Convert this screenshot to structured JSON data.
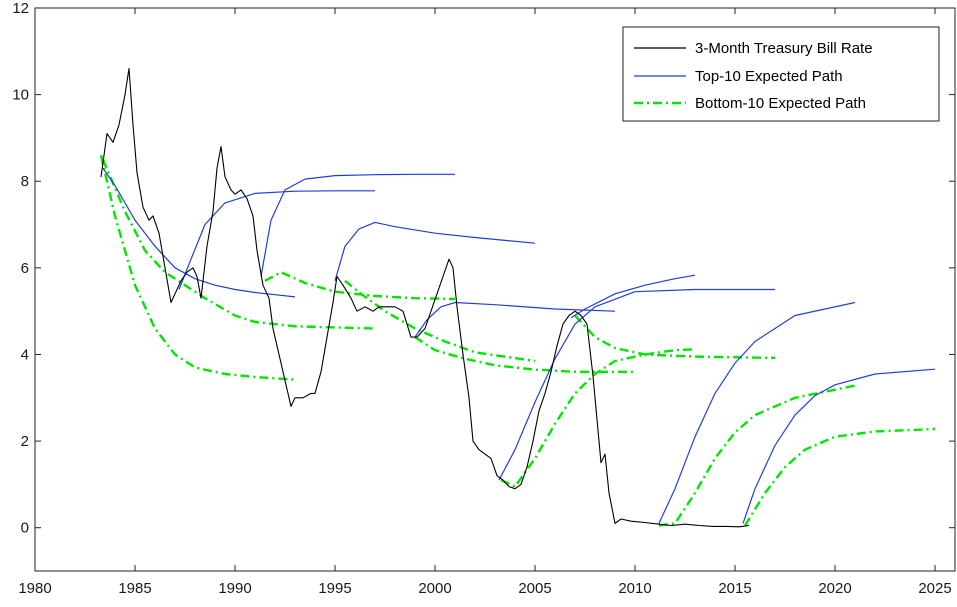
{
  "chart_data": {
    "type": "line",
    "title": "",
    "xlabel": "",
    "ylabel": "",
    "xlim": [
      1980,
      2026
    ],
    "ylim": [
      -1,
      12
    ],
    "xticks": [
      1980,
      1985,
      1990,
      1995,
      2000,
      2005,
      2010,
      2015,
      2020,
      2025
    ],
    "yticks": [
      0,
      2,
      4,
      6,
      8,
      10,
      12
    ],
    "grid": false,
    "legend_position": "top-right",
    "legend": [
      {
        "label": "3-Month Treasury Bill Rate",
        "color": "#000000",
        "style": "solid"
      },
      {
        "label": "Top-10 Expected Path",
        "color": "#1f3fd6",
        "style": "solid"
      },
      {
        "label": "Bottom-10 Expected Path",
        "color": "#00e600",
        "style": "dash-dot"
      }
    ],
    "tbill": {
      "name": "3-Month Treasury Bill Rate",
      "color": "#000000",
      "points": [
        [
          1983.3,
          8.1
        ],
        [
          1983.6,
          9.1
        ],
        [
          1983.9,
          8.9
        ],
        [
          1984.2,
          9.3
        ],
        [
          1984.5,
          10.0
        ],
        [
          1984.7,
          10.6
        ],
        [
          1984.9,
          9.3
        ],
        [
          1985.1,
          8.2
        ],
        [
          1985.4,
          7.4
        ],
        [
          1985.7,
          7.1
        ],
        [
          1985.9,
          7.2
        ],
        [
          1986.2,
          6.8
        ],
        [
          1986.5,
          6.0
        ],
        [
          1986.8,
          5.2
        ],
        [
          1987.0,
          5.4
        ],
        [
          1987.3,
          5.7
        ],
        [
          1987.6,
          5.9
        ],
        [
          1987.9,
          6.0
        ],
        [
          1988.1,
          5.8
        ],
        [
          1988.3,
          5.3
        ],
        [
          1988.6,
          6.5
        ],
        [
          1988.9,
          7.3
        ],
        [
          1989.1,
          8.3
        ],
        [
          1989.3,
          8.8
        ],
        [
          1989.5,
          8.1
        ],
        [
          1989.8,
          7.8
        ],
        [
          1990.0,
          7.7
        ],
        [
          1990.3,
          7.8
        ],
        [
          1990.6,
          7.6
        ],
        [
          1990.9,
          7.2
        ],
        [
          1991.1,
          6.4
        ],
        [
          1991.4,
          5.6
        ],
        [
          1991.7,
          5.3
        ],
        [
          1991.9,
          4.6
        ],
        [
          1992.2,
          4.0
        ],
        [
          1992.4,
          3.6
        ],
        [
          1992.6,
          3.2
        ],
        [
          1992.8,
          2.8
        ],
        [
          1993.0,
          3.0
        ],
        [
          1993.4,
          3.0
        ],
        [
          1993.8,
          3.1
        ],
        [
          1994.0,
          3.1
        ],
        [
          1994.3,
          3.6
        ],
        [
          1994.6,
          4.4
        ],
        [
          1994.9,
          5.2
        ],
        [
          1995.1,
          5.8
        ],
        [
          1995.4,
          5.6
        ],
        [
          1995.8,
          5.3
        ],
        [
          1996.1,
          5.0
        ],
        [
          1996.5,
          5.1
        ],
        [
          1996.9,
          5.0
        ],
        [
          1997.2,
          5.1
        ],
        [
          1997.6,
          5.1
        ],
        [
          1998.0,
          5.1
        ],
        [
          1998.4,
          5.0
        ],
        [
          1998.8,
          4.4
        ],
        [
          1999.1,
          4.4
        ],
        [
          1999.5,
          4.6
        ],
        [
          1999.8,
          5.0
        ],
        [
          2000.1,
          5.4
        ],
        [
          2000.4,
          5.8
        ],
        [
          2000.7,
          6.2
        ],
        [
          2000.9,
          6.0
        ],
        [
          2001.1,
          5.1
        ],
        [
          2001.4,
          4.0
        ],
        [
          2001.7,
          3.0
        ],
        [
          2001.9,
          2.0
        ],
        [
          2002.2,
          1.8
        ],
        [
          2002.5,
          1.7
        ],
        [
          2002.8,
          1.6
        ],
        [
          2003.1,
          1.2
        ],
        [
          2003.4,
          1.1
        ],
        [
          2003.7,
          0.95
        ],
        [
          2004.0,
          0.9
        ],
        [
          2004.3,
          1.0
        ],
        [
          2004.6,
          1.4
        ],
        [
          2004.9,
          2.0
        ],
        [
          2005.2,
          2.7
        ],
        [
          2005.5,
          3.1
        ],
        [
          2005.8,
          3.6
        ],
        [
          2006.1,
          4.2
        ],
        [
          2006.4,
          4.7
        ],
        [
          2006.7,
          4.9
        ],
        [
          2007.0,
          5.0
        ],
        [
          2007.3,
          4.9
        ],
        [
          2007.6,
          4.7
        ],
        [
          2007.9,
          3.5
        ],
        [
          2008.1,
          2.5
        ],
        [
          2008.3,
          1.5
        ],
        [
          2008.5,
          1.7
        ],
        [
          2008.7,
          0.8
        ],
        [
          2009.0,
          0.1
        ],
        [
          2009.3,
          0.2
        ],
        [
          2009.8,
          0.15
        ],
        [
          2010.5,
          0.12
        ],
        [
          2011.2,
          0.08
        ],
        [
          2011.8,
          0.05
        ],
        [
          2012.5,
          0.08
        ],
        [
          2013.2,
          0.05
        ],
        [
          2013.9,
          0.03
        ],
        [
          2014.6,
          0.03
        ],
        [
          2015.2,
          0.02
        ],
        [
          2015.7,
          0.05
        ]
      ]
    },
    "top10": {
      "name": "Top-10 Expected Path",
      "color": "#1f3fd6",
      "paths": [
        [
          [
            1983.4,
            8.3
          ],
          [
            1984.0,
            7.9
          ],
          [
            1985.0,
            7.1
          ],
          [
            1986.0,
            6.5
          ],
          [
            1987.0,
            6.0
          ],
          [
            1988.0,
            5.75
          ],
          [
            1989.0,
            5.6
          ],
          [
            1990.0,
            5.5
          ],
          [
            1991.0,
            5.43
          ],
          [
            1992.0,
            5.38
          ],
          [
            1993.0,
            5.33
          ]
        ],
        [
          [
            1987.2,
            5.5
          ],
          [
            1987.8,
            6.2
          ],
          [
            1988.5,
            7.0
          ],
          [
            1989.5,
            7.5
          ],
          [
            1991.0,
            7.72
          ],
          [
            1993.0,
            7.77
          ],
          [
            1995.0,
            7.78
          ],
          [
            1997.0,
            7.78
          ]
        ],
        [
          [
            1991.3,
            5.8
          ],
          [
            1991.8,
            7.1
          ],
          [
            1992.5,
            7.8
          ],
          [
            1993.5,
            8.05
          ],
          [
            1995.0,
            8.13
          ],
          [
            1997.0,
            8.15
          ],
          [
            1999.0,
            8.16
          ],
          [
            2001.0,
            8.16
          ]
        ],
        [
          [
            1995.0,
            5.7
          ],
          [
            1995.5,
            6.5
          ],
          [
            1996.2,
            6.9
          ],
          [
            1997.0,
            7.05
          ],
          [
            1998.0,
            6.95
          ],
          [
            2000.0,
            6.8
          ],
          [
            2002.0,
            6.7
          ],
          [
            2005.0,
            6.57
          ]
        ],
        [
          [
            1999.0,
            4.4
          ],
          [
            1999.6,
            4.8
          ],
          [
            2000.3,
            5.1
          ],
          [
            2001.0,
            5.2
          ],
          [
            2003.0,
            5.15
          ],
          [
            2006.0,
            5.05
          ],
          [
            2009.0,
            5.0
          ]
        ],
        [
          [
            2003.2,
            1.1
          ],
          [
            2004.0,
            1.8
          ],
          [
            2005.0,
            2.9
          ],
          [
            2006.0,
            3.9
          ],
          [
            2007.0,
            4.7
          ],
          [
            2008.0,
            5.1
          ],
          [
            2010.0,
            5.45
          ],
          [
            2013.0,
            5.5
          ],
          [
            2017.0,
            5.5
          ]
        ],
        [
          [
            2006.8,
            4.85
          ],
          [
            2007.5,
            5.05
          ],
          [
            2009.0,
            5.4
          ],
          [
            2010.5,
            5.6
          ],
          [
            2012.0,
            5.75
          ],
          [
            2013.0,
            5.83
          ]
        ],
        [
          [
            2011.2,
            0.1
          ],
          [
            2012.0,
            0.9
          ],
          [
            2013.0,
            2.1
          ],
          [
            2014.0,
            3.1
          ],
          [
            2015.0,
            3.8
          ],
          [
            2016.0,
            4.3
          ],
          [
            2018.0,
            4.9
          ],
          [
            2021.0,
            5.2
          ]
        ],
        [
          [
            2015.4,
            0.1
          ],
          [
            2016.0,
            0.9
          ],
          [
            2017.0,
            1.9
          ],
          [
            2018.0,
            2.6
          ],
          [
            2019.0,
            3.05
          ],
          [
            2020.0,
            3.3
          ],
          [
            2022.0,
            3.55
          ],
          [
            2025.0,
            3.66
          ]
        ]
      ]
    },
    "bottom10": {
      "name": "Bottom-10 Expected Path",
      "color": "#00e600",
      "paths": [
        [
          [
            1983.3,
            8.6
          ],
          [
            1984.0,
            7.2
          ],
          [
            1985.0,
            5.6
          ],
          [
            1986.0,
            4.6
          ],
          [
            1987.0,
            4.0
          ],
          [
            1988.0,
            3.7
          ],
          [
            1989.5,
            3.55
          ],
          [
            1991.0,
            3.48
          ],
          [
            1993.0,
            3.42
          ]
        ],
        [
          [
            1983.4,
            8.5
          ],
          [
            1984.5,
            7.3
          ],
          [
            1985.5,
            6.4
          ],
          [
            1986.5,
            5.9
          ],
          [
            1987.5,
            5.6
          ],
          [
            1988.5,
            5.3
          ],
          [
            1990.0,
            4.9
          ],
          [
            1991.0,
            4.75
          ],
          [
            1993.0,
            4.65
          ],
          [
            1997.0,
            4.6
          ]
        ],
        [
          [
            1991.5,
            5.7
          ],
          [
            1992.3,
            5.9
          ],
          [
            1993.5,
            5.65
          ],
          [
            1995.0,
            5.45
          ],
          [
            1997.0,
            5.35
          ],
          [
            1999.0,
            5.3
          ],
          [
            2001.0,
            5.28
          ]
        ],
        [
          [
            1995.5,
            5.7
          ],
          [
            1996.3,
            5.4
          ],
          [
            1997.5,
            5.0
          ],
          [
            1999.0,
            4.6
          ],
          [
            2000.5,
            4.3
          ],
          [
            2002.0,
            4.05
          ],
          [
            2005.0,
            3.85
          ]
        ],
        [
          [
            1999.0,
            4.4
          ],
          [
            2000.0,
            4.1
          ],
          [
            2001.5,
            3.9
          ],
          [
            2003.0,
            3.75
          ],
          [
            2005.0,
            3.65
          ],
          [
            2007.0,
            3.6
          ],
          [
            2010.0,
            3.6
          ]
        ],
        [
          [
            2003.3,
            1.1
          ],
          [
            2004.0,
            0.95
          ],
          [
            2005.0,
            1.6
          ],
          [
            2006.0,
            2.4
          ],
          [
            2007.0,
            3.1
          ],
          [
            2008.0,
            3.55
          ],
          [
            2009.0,
            3.85
          ],
          [
            2010.5,
            4.0
          ],
          [
            2012.0,
            4.1
          ],
          [
            2013.0,
            4.12
          ]
        ],
        [
          [
            2007.0,
            4.9
          ],
          [
            2008.0,
            4.4
          ],
          [
            2009.0,
            4.15
          ],
          [
            2010.5,
            4.0
          ],
          [
            2013.0,
            3.95
          ],
          [
            2017.0,
            3.92
          ]
        ],
        [
          [
            2011.2,
            0.05
          ],
          [
            2012.0,
            0.1
          ],
          [
            2013.0,
            0.8
          ],
          [
            2014.0,
            1.6
          ],
          [
            2015.0,
            2.2
          ],
          [
            2016.0,
            2.6
          ],
          [
            2018.0,
            3.0
          ],
          [
            2021.0,
            3.28
          ]
        ],
        [
          [
            2015.5,
            0.05
          ],
          [
            2016.5,
            0.8
          ],
          [
            2017.5,
            1.4
          ],
          [
            2018.5,
            1.8
          ],
          [
            2020.0,
            2.1
          ],
          [
            2022.0,
            2.22
          ],
          [
            2025.0,
            2.28
          ]
        ]
      ]
    }
  }
}
